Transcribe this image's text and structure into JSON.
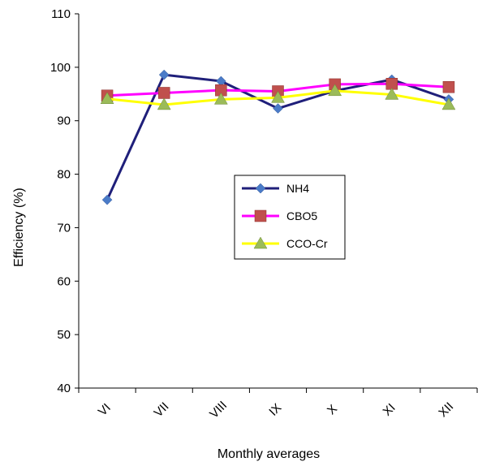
{
  "chart_data": {
    "type": "line",
    "title": "",
    "xlabel": "Monthly averages",
    "ylabel": "Efficiency (%)",
    "categories": [
      "VI",
      "VII",
      "VIII",
      "IX",
      "X",
      "XI",
      "XII"
    ],
    "ylim": [
      40,
      110
    ],
    "yticks": [
      40,
      50,
      60,
      70,
      80,
      90,
      100,
      110
    ],
    "grid": false,
    "legend_position": "center-right",
    "series": [
      {
        "name": "NH4",
        "marker": "diamond",
        "color": "#1f1f7a",
        "marker_color": "#4a7bc8",
        "values": [
          75.2,
          98.6,
          97.4,
          92.3,
          95.6,
          97.7,
          94.0
        ]
      },
      {
        "name": "CBO5",
        "marker": "square",
        "color": "#ff00ff",
        "marker_color": "#c0504d",
        "values": [
          94.7,
          95.2,
          95.7,
          95.5,
          96.8,
          96.9,
          96.3
        ]
      },
      {
        "name": "CCO-Cr",
        "marker": "triangle",
        "color": "#ffff00",
        "marker_color": "#9bbb59",
        "values": [
          94.1,
          93.0,
          94.0,
          94.3,
          95.6,
          94.9,
          93.0
        ]
      }
    ]
  }
}
